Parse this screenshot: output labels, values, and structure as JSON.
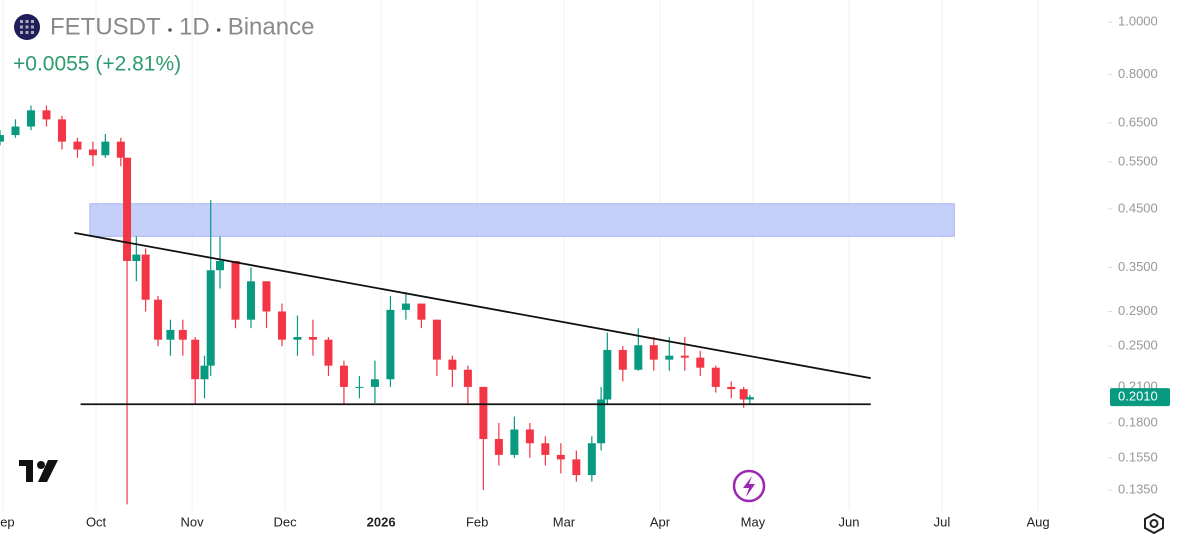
{
  "chart_data": {
    "type": "candlestick",
    "symbol": "FETUSDT",
    "interval": "1D",
    "exchange": "Binance",
    "change": "+0.0055 (+2.81%)",
    "log_scale": true,
    "grid": "x",
    "up_color": "#089981",
    "down_color": "#f23645",
    "xlim": [
      -31,
      324
    ],
    "ylim": [
      0.124,
      1.1
    ],
    "xticks": [
      {
        "value": -30,
        "label": "Sep"
      },
      {
        "value": 0,
        "label": "Oct"
      },
      {
        "value": 31,
        "label": "Nov"
      },
      {
        "value": 61,
        "label": "Dec"
      },
      {
        "value": 92,
        "label": "2026"
      },
      {
        "value": 123,
        "label": "Feb"
      },
      {
        "value": 151,
        "label": "Mar"
      },
      {
        "value": 182,
        "label": "Apr"
      },
      {
        "value": 212,
        "label": "May"
      },
      {
        "value": 243,
        "label": "Jun"
      },
      {
        "value": 273,
        "label": "Jul"
      },
      {
        "value": 304,
        "label": "Aug"
      }
    ],
    "yticks": [
      {
        "value": 1,
        "label": "1.0000"
      },
      {
        "value": 0.8,
        "label": "0.8000"
      },
      {
        "value": 0.65,
        "label": "0.6500"
      },
      {
        "value": 0.55,
        "label": "0.5500"
      },
      {
        "value": 0.45,
        "label": "0.4500"
      },
      {
        "value": 0.35,
        "label": "0.3500"
      },
      {
        "value": 0.29,
        "label": "0.2900"
      },
      {
        "value": 0.25,
        "label": "0.2500"
      },
      {
        "value": 0.21,
        "label": "0.2100"
      },
      {
        "value": 0.18,
        "label": "0.1800"
      },
      {
        "value": 0.155,
        "label": "0.1550"
      },
      {
        "value": 0.135,
        "label": "0.1350"
      }
    ],
    "last_price": {
      "value": 0.201,
      "label": "0.2010"
    },
    "x": [
      -31,
      -26,
      -21,
      -16,
      -11,
      -6,
      -1,
      3,
      8,
      10,
      13,
      16,
      20,
      24,
      28,
      32,
      35,
      37,
      40,
      45,
      50,
      55,
      60,
      65,
      70,
      75,
      80,
      85,
      90,
      95,
      100,
      105,
      110,
      115,
      120,
      125,
      130,
      135,
      140,
      145,
      150,
      155,
      160,
      163,
      165,
      170,
      175,
      180,
      185,
      190,
      195,
      200,
      205,
      209,
      211
    ],
    "ohlc": [
      [
        0.6,
        0.63,
        0.59,
        0.617
      ],
      [
        0.617,
        0.66,
        0.61,
        0.64
      ],
      [
        0.64,
        0.7,
        0.63,
        0.686
      ],
      [
        0.686,
        0.7,
        0.64,
        0.66
      ],
      [
        0.66,
        0.67,
        0.58,
        0.6
      ],
      [
        0.6,
        0.61,
        0.56,
        0.58
      ],
      [
        0.58,
        0.6,
        0.54,
        0.566
      ],
      [
        0.566,
        0.62,
        0.56,
        0.6
      ],
      [
        0.6,
        0.61,
        0.54,
        0.56
      ],
      [
        0.56,
        0.56,
        0.127,
        0.36
      ],
      [
        0.36,
        0.4,
        0.33,
        0.37
      ],
      [
        0.37,
        0.38,
        0.29,
        0.305
      ],
      [
        0.305,
        0.31,
        0.25,
        0.257
      ],
      [
        0.257,
        0.28,
        0.24,
        0.268
      ],
      [
        0.268,
        0.28,
        0.24,
        0.257
      ],
      [
        0.257,
        0.26,
        0.195,
        0.217
      ],
      [
        0.217,
        0.24,
        0.2,
        0.23
      ],
      [
        0.23,
        0.467,
        0.22,
        0.346
      ],
      [
        0.346,
        0.4,
        0.32,
        0.36
      ],
      [
        0.36,
        0.36,
        0.27,
        0.28
      ],
      [
        0.28,
        0.35,
        0.27,
        0.33
      ],
      [
        0.33,
        0.33,
        0.27,
        0.29
      ],
      [
        0.29,
        0.3,
        0.25,
        0.257
      ],
      [
        0.257,
        0.285,
        0.24,
        0.26
      ],
      [
        0.26,
        0.28,
        0.24,
        0.257
      ],
      [
        0.257,
        0.26,
        0.22,
        0.23
      ],
      [
        0.23,
        0.235,
        0.195,
        0.21
      ],
      [
        0.21,
        0.22,
        0.2,
        0.21
      ],
      [
        0.21,
        0.235,
        0.196,
        0.217
      ],
      [
        0.217,
        0.31,
        0.21,
        0.292
      ],
      [
        0.292,
        0.315,
        0.28,
        0.3
      ],
      [
        0.3,
        0.3,
        0.27,
        0.28
      ],
      [
        0.28,
        0.28,
        0.22,
        0.236
      ],
      [
        0.236,
        0.24,
        0.21,
        0.226
      ],
      [
        0.226,
        0.23,
        0.195,
        0.21
      ],
      [
        0.21,
        0.21,
        0.135,
        0.168
      ],
      [
        0.168,
        0.18,
        0.15,
        0.157
      ],
      [
        0.157,
        0.185,
        0.155,
        0.175
      ],
      [
        0.175,
        0.18,
        0.155,
        0.165
      ],
      [
        0.165,
        0.17,
        0.15,
        0.157
      ],
      [
        0.157,
        0.165,
        0.145,
        0.154
      ],
      [
        0.154,
        0.16,
        0.14,
        0.144
      ],
      [
        0.144,
        0.17,
        0.14,
        0.165
      ],
      [
        0.165,
        0.21,
        0.16,
        0.199
      ],
      [
        0.199,
        0.265,
        0.195,
        0.246
      ],
      [
        0.246,
        0.25,
        0.215,
        0.226
      ],
      [
        0.226,
        0.27,
        0.225,
        0.251
      ],
      [
        0.251,
        0.26,
        0.225,
        0.236
      ],
      [
        0.236,
        0.26,
        0.225,
        0.24
      ],
      [
        0.24,
        0.26,
        0.225,
        0.238
      ],
      [
        0.238,
        0.245,
        0.22,
        0.228
      ],
      [
        0.228,
        0.23,
        0.205,
        0.21
      ],
      [
        0.21,
        0.215,
        0.2,
        0.208
      ],
      [
        0.208,
        0.21,
        0.192,
        0.199
      ],
      [
        0.199,
        0.203,
        0.195,
        0.201
      ]
    ],
    "zone": {
      "x": [
        -2,
        277
      ],
      "y": [
        0.4,
        0.46
      ],
      "color": "#bac8f8"
    },
    "trend_lines": [
      {
        "x": [
          -7,
          250
        ],
        "y": [
          0.406,
          0.218
        ]
      },
      {
        "x": [
          -5,
          250
        ],
        "y": [
          0.195,
          0.195
        ]
      }
    ]
  }
}
